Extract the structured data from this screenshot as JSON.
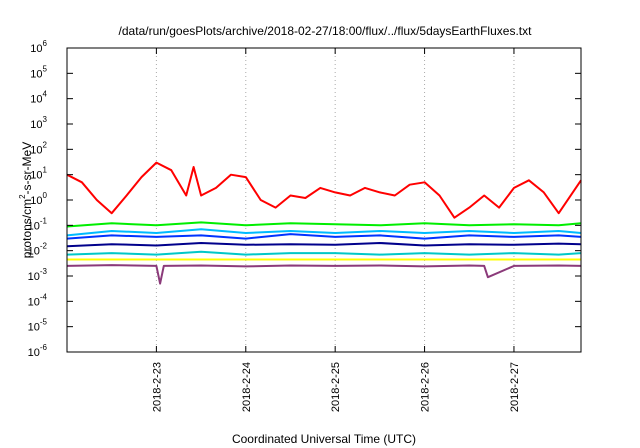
{
  "chart_data": {
    "type": "line",
    "title": "/data/run/goesPlots/archive/2018-02-27/18:00/flux/../flux/5daysEarthFluxes.txt",
    "xlabel": "Coordinated Universal Time (UTC)",
    "ylabel": "protons/cm2-s-sr-MeV",
    "ylabel_parts": [
      "protons/cm",
      "2",
      "-s-sr-MeV"
    ],
    "y_scale": "log",
    "ylim": [
      1e-06,
      1000000.0
    ],
    "y_ticks": [
      {
        "base": "10",
        "exp": "-6",
        "value": 1e-06
      },
      {
        "base": "10",
        "exp": "-5",
        "value": 1e-05
      },
      {
        "base": "10",
        "exp": "-4",
        "value": 0.0001
      },
      {
        "base": "10",
        "exp": "-3",
        "value": 0.001
      },
      {
        "base": "10",
        "exp": "-2",
        "value": 0.01
      },
      {
        "base": "10",
        "exp": "-1",
        "value": 0.1
      },
      {
        "base": "10",
        "exp": "0",
        "value": 1
      },
      {
        "base": "10",
        "exp": "1",
        "value": 10
      },
      {
        "base": "10",
        "exp": "2",
        "value": 100
      },
      {
        "base": "10",
        "exp": "3",
        "value": 1000
      },
      {
        "base": "10",
        "exp": "4",
        "value": 10000
      },
      {
        "base": "10",
        "exp": "5",
        "value": 100000
      },
      {
        "base": "10",
        "exp": "6",
        "value": 1000000
      }
    ],
    "xlim": [
      "2018-02-22T00:00",
      "2018-02-27T18:00"
    ],
    "x_ticks": [
      "2018-2-23",
      "2018-2-24",
      "2018-2-25",
      "2018-2-26",
      "2018-2-27"
    ],
    "x_tick_times": [
      "2018-02-23T00:00",
      "2018-02-24T00:00",
      "2018-02-25T00:00",
      "2018-02-26T00:00",
      "2018-02-27T00:00"
    ],
    "grid": true,
    "series": [
      {
        "color": "#ff0000",
        "x": [
          "2018-02-22T00:00",
          "2018-02-22T04:00",
          "2018-02-22T08:00",
          "2018-02-22T12:00",
          "2018-02-22T16:00",
          "2018-02-22T20:00",
          "2018-02-23T00:00",
          "2018-02-23T04:00",
          "2018-02-23T08:00",
          "2018-02-23T10:00",
          "2018-02-23T12:00",
          "2018-02-23T16:00",
          "2018-02-23T20:00",
          "2018-02-24T00:00",
          "2018-02-24T04:00",
          "2018-02-24T08:00",
          "2018-02-24T12:00",
          "2018-02-24T16:00",
          "2018-02-24T20:00",
          "2018-02-25T00:00",
          "2018-02-25T04:00",
          "2018-02-25T08:00",
          "2018-02-25T12:00",
          "2018-02-25T16:00",
          "2018-02-25T20:00",
          "2018-02-26T00:00",
          "2018-02-26T04:00",
          "2018-02-26T08:00",
          "2018-02-26T12:00",
          "2018-02-26T16:00",
          "2018-02-26T20:00",
          "2018-02-27T00:00",
          "2018-02-27T04:00",
          "2018-02-27T08:00",
          "2018-02-27T12:00",
          "2018-02-27T18:00"
        ],
        "y": [
          10,
          5,
          1,
          0.3,
          1.5,
          8,
          30,
          15,
          1.5,
          20,
          1.5,
          3,
          10,
          8,
          1,
          0.5,
          1.5,
          1.2,
          3,
          2,
          1.5,
          3,
          2,
          1.5,
          4,
          5,
          1.5,
          0.2,
          0.5,
          1.5,
          0.5,
          3,
          6,
          2,
          0.3,
          6
        ]
      },
      {
        "color": "#00ee00",
        "x": [
          "2018-02-22T00:00",
          "2018-02-22T12:00",
          "2018-02-23T00:00",
          "2018-02-23T12:00",
          "2018-02-24T00:00",
          "2018-02-24T12:00",
          "2018-02-25T00:00",
          "2018-02-25T12:00",
          "2018-02-26T00:00",
          "2018-02-26T12:00",
          "2018-02-27T00:00",
          "2018-02-27T12:00",
          "2018-02-27T18:00"
        ],
        "y": [
          0.09,
          0.12,
          0.1,
          0.13,
          0.1,
          0.12,
          0.11,
          0.1,
          0.12,
          0.1,
          0.11,
          0.1,
          0.12
        ]
      },
      {
        "color": "#00bbff",
        "x": [
          "2018-02-22T00:00",
          "2018-02-22T12:00",
          "2018-02-23T00:00",
          "2018-02-23T12:00",
          "2018-02-24T00:00",
          "2018-02-24T12:00",
          "2018-02-25T00:00",
          "2018-02-25T12:00",
          "2018-02-26T00:00",
          "2018-02-26T12:00",
          "2018-02-27T00:00",
          "2018-02-27T12:00",
          "2018-02-27T18:00"
        ],
        "y": [
          0.04,
          0.06,
          0.05,
          0.07,
          0.05,
          0.06,
          0.05,
          0.06,
          0.05,
          0.06,
          0.05,
          0.06,
          0.05
        ]
      },
      {
        "color": "#0033ff",
        "x": [
          "2018-02-22T00:00",
          "2018-02-22T12:00",
          "2018-02-23T00:00",
          "2018-02-23T12:00",
          "2018-02-24T00:00",
          "2018-02-24T12:00",
          "2018-02-25T00:00",
          "2018-02-25T12:00",
          "2018-02-26T00:00",
          "2018-02-26T12:00",
          "2018-02-27T00:00",
          "2018-02-27T12:00",
          "2018-02-27T18:00"
        ],
        "y": [
          0.03,
          0.04,
          0.035,
          0.04,
          0.03,
          0.045,
          0.035,
          0.04,
          0.03,
          0.04,
          0.035,
          0.04,
          0.035
        ]
      },
      {
        "color": "#00008b",
        "x": [
          "2018-02-22T00:00",
          "2018-02-22T12:00",
          "2018-02-23T00:00",
          "2018-02-23T12:00",
          "2018-02-24T00:00",
          "2018-02-24T12:00",
          "2018-02-25T00:00",
          "2018-02-25T12:00",
          "2018-02-26T00:00",
          "2018-02-26T12:00",
          "2018-02-27T00:00",
          "2018-02-27T12:00",
          "2018-02-27T18:00"
        ],
        "y": [
          0.015,
          0.018,
          0.016,
          0.02,
          0.017,
          0.018,
          0.017,
          0.02,
          0.016,
          0.018,
          0.017,
          0.019,
          0.018
        ]
      },
      {
        "color": "#00c8c8",
        "x": [
          "2018-02-22T00:00",
          "2018-02-22T12:00",
          "2018-02-23T00:00",
          "2018-02-23T12:00",
          "2018-02-24T00:00",
          "2018-02-24T12:00",
          "2018-02-25T00:00",
          "2018-02-25T12:00",
          "2018-02-26T00:00",
          "2018-02-26T12:00",
          "2018-02-27T00:00",
          "2018-02-27T12:00",
          "2018-02-27T18:00"
        ],
        "y": [
          0.007,
          0.008,
          0.007,
          0.009,
          0.007,
          0.008,
          0.008,
          0.007,
          0.008,
          0.007,
          0.008,
          0.007,
          0.008
        ]
      },
      {
        "color": "#ffff00",
        "x": [
          "2018-02-22T00:00",
          "2018-02-22T12:00",
          "2018-02-23T00:00",
          "2018-02-23T12:00",
          "2018-02-24T00:00",
          "2018-02-24T12:00",
          "2018-02-25T00:00",
          "2018-02-25T12:00",
          "2018-02-26T00:00",
          "2018-02-26T12:00",
          "2018-02-27T00:00",
          "2018-02-27T12:00",
          "2018-02-27T18:00"
        ],
        "y": [
          0.0045,
          0.0045,
          0.0045,
          0.0045,
          0.0045,
          0.0045,
          0.0045,
          0.0045,
          0.0045,
          0.0045,
          0.0045,
          0.0045,
          0.0045
        ]
      },
      {
        "color": "#8b3a7a",
        "x": [
          "2018-02-22T00:00",
          "2018-02-22T12:00",
          "2018-02-23T00:00",
          "2018-02-23T01:00",
          "2018-02-23T02:00",
          "2018-02-23T12:00",
          "2018-02-24T00:00",
          "2018-02-24T12:00",
          "2018-02-25T00:00",
          "2018-02-25T12:00",
          "2018-02-26T00:00",
          "2018-02-26T12:00",
          "2018-02-26T16:00",
          "2018-02-26T17:00",
          "2018-02-27T00:00",
          "2018-02-27T12:00",
          "2018-02-27T18:00"
        ],
        "y": [
          0.0025,
          0.0027,
          0.0025,
          0.0005,
          0.0025,
          0.0026,
          0.0024,
          0.0026,
          0.0025,
          0.0026,
          0.0024,
          0.0026,
          0.0025,
          0.0009,
          0.0025,
          0.0026,
          0.0025
        ]
      }
    ]
  }
}
